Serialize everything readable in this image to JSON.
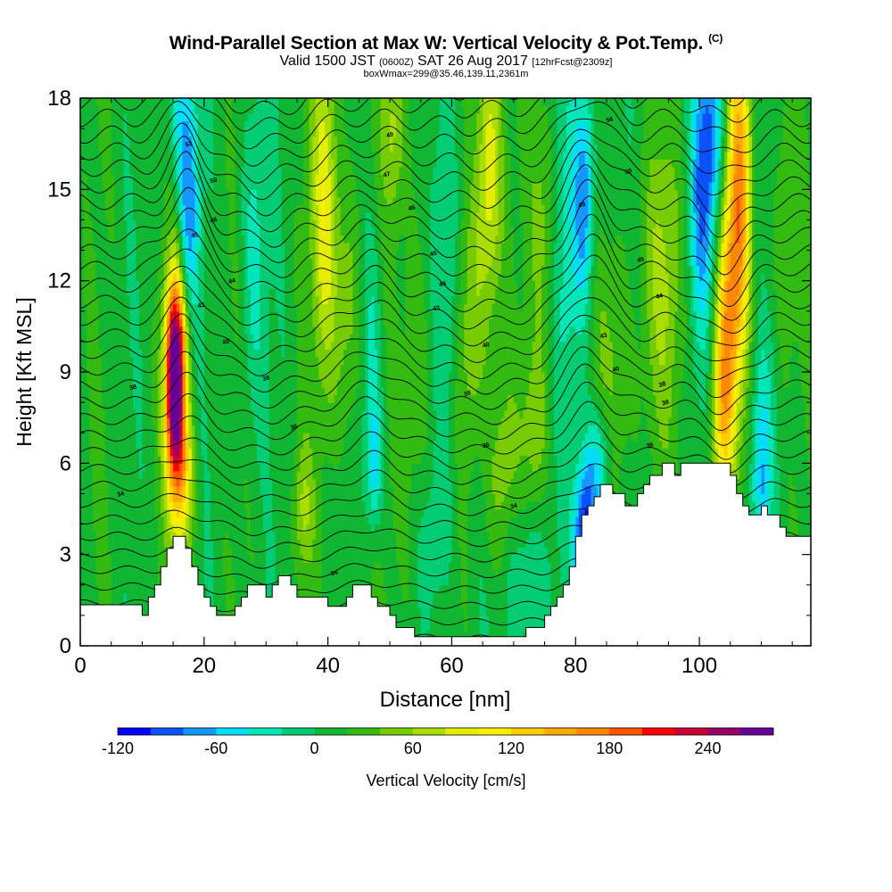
{
  "header": {
    "title": "Wind-Parallel Section at Max W: Vertical Velocity & Pot.Temp.",
    "copyright": "(C)",
    "valid_prefix": "Valid 1500 JST",
    "valid_zulu": "(0600Z)",
    "valid_date": "SAT 26 Aug 2017",
    "forecast": "[12hrFcst@2309z]",
    "boxinfo": "boxWmax=299@35.46,139.11,2361m"
  },
  "chart_data": {
    "type": "heatmap",
    "xlabel": "Distance [nm]",
    "ylabel": "Height [Kft MSL]",
    "xlim": [
      0,
      118
    ],
    "ylim": [
      0,
      18
    ],
    "x_ticks": [
      "0",
      "20",
      "40",
      "60",
      "80",
      "100"
    ],
    "x_tick_values": [
      0,
      20,
      40,
      60,
      80,
      100
    ],
    "y_ticks": [
      "0",
      "3",
      "6",
      "9",
      "12",
      "15",
      "18"
    ],
    "y_tick_values": [
      0,
      3,
      6,
      9,
      12,
      15,
      18
    ],
    "colorbar": {
      "label": "Vertical Velocity [cm/s]",
      "tick_labels": [
        "-120",
        "-60",
        "0",
        "60",
        "120",
        "180",
        "240"
      ],
      "tick_values": [
        -120,
        -60,
        0,
        60,
        120,
        180,
        240
      ],
      "range": [
        -120,
        280
      ],
      "step": 20,
      "colors": [
        "#0000ff",
        "#0a52ff",
        "#1498ff",
        "#00ddff",
        "#00e6b8",
        "#00cc73",
        "#11b633",
        "#33bb11",
        "#77cc00",
        "#aadd00",
        "#e6ee00",
        "#ffee00",
        "#ffcc00",
        "#ffaa00",
        "#ff8800",
        "#ff5500",
        "#ff0000",
        "#cc0033",
        "#990066",
        "#660099"
      ]
    },
    "terrain_profile": [
      [
        0,
        1.35
      ],
      [
        10,
        1.35
      ],
      [
        10,
        1.0
      ],
      [
        11,
        1.0
      ],
      [
        11,
        1.6
      ],
      [
        12,
        1.6
      ],
      [
        12,
        2.0
      ],
      [
        13,
        2.0
      ],
      [
        13,
        2.6
      ],
      [
        14,
        2.6
      ],
      [
        14,
        3.2
      ],
      [
        15,
        3.2
      ],
      [
        15,
        3.6
      ],
      [
        17,
        3.6
      ],
      [
        17,
        3.2
      ],
      [
        18,
        3.2
      ],
      [
        18,
        2.6
      ],
      [
        19,
        2.6
      ],
      [
        19,
        2.0
      ],
      [
        20,
        2.0
      ],
      [
        20,
        1.6
      ],
      [
        21,
        1.6
      ],
      [
        21,
        1.3
      ],
      [
        22,
        1.3
      ],
      [
        22,
        1.0
      ],
      [
        25,
        1.0
      ],
      [
        25,
        1.3
      ],
      [
        26,
        1.3
      ],
      [
        26,
        1.6
      ],
      [
        27,
        1.6
      ],
      [
        27,
        2.0
      ],
      [
        30,
        2.0
      ],
      [
        30,
        1.6
      ],
      [
        31,
        1.6
      ],
      [
        31,
        2.0
      ],
      [
        32,
        2.0
      ],
      [
        32,
        2.3
      ],
      [
        34,
        2.3
      ],
      [
        34,
        2.0
      ],
      [
        35,
        2.0
      ],
      [
        35,
        1.6
      ],
      [
        40,
        1.6
      ],
      [
        40,
        1.3
      ],
      [
        43,
        1.3
      ],
      [
        43,
        1.6
      ],
      [
        44,
        1.6
      ],
      [
        44,
        2.0
      ],
      [
        47,
        2.0
      ],
      [
        47,
        1.6
      ],
      [
        48,
        1.6
      ],
      [
        48,
        1.3
      ],
      [
        50,
        1.3
      ],
      [
        50,
        1.0
      ],
      [
        51,
        1.0
      ],
      [
        51,
        0.6
      ],
      [
        54,
        0.6
      ],
      [
        54,
        0.3
      ],
      [
        72,
        0.3
      ],
      [
        72,
        0.6
      ],
      [
        75,
        0.6
      ],
      [
        75,
        1.0
      ],
      [
        76,
        1.0
      ],
      [
        76,
        1.3
      ],
      [
        77,
        1.3
      ],
      [
        77,
        1.6
      ],
      [
        78,
        1.6
      ],
      [
        78,
        2.0
      ],
      [
        79,
        2.0
      ],
      [
        79,
        2.6
      ],
      [
        80,
        2.6
      ],
      [
        80,
        3.6
      ],
      [
        81,
        3.6
      ],
      [
        81,
        4.3
      ],
      [
        82,
        4.3
      ],
      [
        82,
        4.6
      ],
      [
        83,
        4.6
      ],
      [
        83,
        4.9
      ],
      [
        84,
        4.9
      ],
      [
        84,
        5.3
      ],
      [
        86,
        5.3
      ],
      [
        86,
        5.0
      ],
      [
        88,
        5.0
      ],
      [
        88,
        4.6
      ],
      [
        90,
        4.6
      ],
      [
        90,
        5.0
      ],
      [
        91,
        5.0
      ],
      [
        91,
        5.3
      ],
      [
        92,
        5.3
      ],
      [
        92,
        5.6
      ],
      [
        94,
        5.6
      ],
      [
        94,
        6.0
      ],
      [
        96,
        6.0
      ],
      [
        96,
        5.6
      ],
      [
        97,
        5.6
      ],
      [
        97,
        6.0
      ],
      [
        105,
        6.0
      ],
      [
        105,
        5.6
      ],
      [
        106,
        5.6
      ],
      [
        106,
        5.0
      ],
      [
        107,
        5.0
      ],
      [
        107,
        4.6
      ],
      [
        108,
        4.6
      ],
      [
        108,
        4.3
      ],
      [
        110,
        4.3
      ],
      [
        110,
        4.6
      ],
      [
        111,
        4.6
      ],
      [
        111,
        4.3
      ],
      [
        113,
        4.3
      ],
      [
        113,
        3.9
      ],
      [
        114,
        3.9
      ],
      [
        114,
        3.6
      ],
      [
        118,
        3.6
      ]
    ],
    "updrafts": [
      {
        "x": 15.2,
        "y": 8.5,
        "sx": 1.1,
        "sy": 2.3,
        "w": 260
      },
      {
        "x": 16.5,
        "y": 5.8,
        "sx": 1.3,
        "sy": 2.0,
        "w": 95
      },
      {
        "x": 16.0,
        "y": 10.5,
        "sx": 1.3,
        "sy": 1.5,
        "w": 75
      },
      {
        "x": 39.5,
        "y": 14.5,
        "sx": 1.5,
        "sy": 4.0,
        "w": 80
      },
      {
        "x": 43.0,
        "y": 11.0,
        "sx": 1.6,
        "sy": 3.0,
        "w": 45
      },
      {
        "x": 36.0,
        "y": 4.5,
        "sx": 1.2,
        "sy": 1.5,
        "w": 45
      },
      {
        "x": 50.5,
        "y": 17.0,
        "sx": 1.3,
        "sy": 2.0,
        "w": 50
      },
      {
        "x": 54.0,
        "y": 8.0,
        "sx": 2.0,
        "sy": 5.0,
        "w": 30
      },
      {
        "x": 66.0,
        "y": 15.5,
        "sx": 1.5,
        "sy": 3.5,
        "w": 90
      },
      {
        "x": 63.0,
        "y": 10.0,
        "sx": 1.5,
        "sy": 3.0,
        "w": 40
      },
      {
        "x": 68.0,
        "y": 5.5,
        "sx": 1.7,
        "sy": 2.5,
        "w": 45
      },
      {
        "x": 75.0,
        "y": 14.0,
        "sx": 1.5,
        "sy": 3.0,
        "w": 40
      },
      {
        "x": 73.5,
        "y": 7.0,
        "sx": 1.5,
        "sy": 2.0,
        "w": 40
      },
      {
        "x": 86.0,
        "y": 8.0,
        "sx": 2.0,
        "sy": 3.5,
        "w": 40
      },
      {
        "x": 94.0,
        "y": 12.0,
        "sx": 2.5,
        "sy": 3.5,
        "w": 45
      },
      {
        "x": 106.5,
        "y": 15.0,
        "sx": 1.3,
        "sy": 4.0,
        "w": 140
      },
      {
        "x": 104.5,
        "y": 10.5,
        "sx": 1.3,
        "sy": 3.0,
        "w": 115
      },
      {
        "x": 103.5,
        "y": 7.5,
        "sx": 1.2,
        "sy": 2.0,
        "w": 70
      },
      {
        "x": 114.0,
        "y": 14.0,
        "sx": 1.5,
        "sy": 3.0,
        "w": 30
      }
    ],
    "downdrafts": [
      {
        "x": 17.5,
        "y": 14.5,
        "sx": 1.2,
        "sy": 3.0,
        "w": -85
      },
      {
        "x": 15.5,
        "y": 17.5,
        "sx": 1.2,
        "sy": 1.5,
        "w": -40
      },
      {
        "x": 28.0,
        "y": 13.0,
        "sx": 1.5,
        "sy": 4.0,
        "w": -40
      },
      {
        "x": 47.5,
        "y": 6.0,
        "sx": 1.0,
        "sy": 1.5,
        "w": -60
      },
      {
        "x": 47.0,
        "y": 10.0,
        "sx": 1.2,
        "sy": 3.0,
        "w": -40
      },
      {
        "x": 59.0,
        "y": 12.5,
        "sx": 1.5,
        "sy": 5.0,
        "w": -45
      },
      {
        "x": 57.0,
        "y": 3.5,
        "sx": 2.0,
        "sy": 2.0,
        "w": -30
      },
      {
        "x": 71.5,
        "y": 2.2,
        "sx": 2.5,
        "sy": 2.0,
        "w": -40
      },
      {
        "x": 79.0,
        "y": 13.0,
        "sx": 2.0,
        "sy": 4.0,
        "w": -40
      },
      {
        "x": 81.5,
        "y": 15.0,
        "sx": 1.1,
        "sy": 2.5,
        "w": -80
      },
      {
        "x": 81.5,
        "y": 3.5,
        "sx": 1.3,
        "sy": 1.8,
        "w": -130
      },
      {
        "x": 84.0,
        "y": 6.0,
        "sx": 1.5,
        "sy": 1.5,
        "w": -70
      },
      {
        "x": 100.5,
        "y": 14.5,
        "sx": 1.5,
        "sy": 3.0,
        "w": -80
      },
      {
        "x": 102.0,
        "y": 17.0,
        "sx": 1.5,
        "sy": 2.0,
        "w": -60
      },
      {
        "x": 110.0,
        "y": 7.0,
        "sx": 1.2,
        "sy": 2.0,
        "w": -50
      },
      {
        "x": 110.0,
        "y": 5.0,
        "sx": 1.0,
        "sy": 1.0,
        "w": -40
      }
    ],
    "theta_contours": {
      "color": "#000000",
      "labels": [
        {
          "text": "38",
          "x": 8.5,
          "y": 8.5
        },
        {
          "text": "34",
          "x": 6.5,
          "y": 5.0
        },
        {
          "text": "40",
          "x": 23.5,
          "y": 10.0
        },
        {
          "text": "43",
          "x": 19.5,
          "y": 11.2
        },
        {
          "text": "44",
          "x": 24.5,
          "y": 12.0
        },
        {
          "text": "45",
          "x": 18.5,
          "y": 13.5
        },
        {
          "text": "46",
          "x": 21.5,
          "y": 14.0
        },
        {
          "text": "50",
          "x": 21.5,
          "y": 15.3
        },
        {
          "text": "53",
          "x": 17.5,
          "y": 16.5
        },
        {
          "text": "38",
          "x": 30.0,
          "y": 8.8
        },
        {
          "text": "36",
          "x": 34.5,
          "y": 7.2
        },
        {
          "text": "34",
          "x": 41.0,
          "y": 2.4
        },
        {
          "text": "49",
          "x": 50.0,
          "y": 16.8
        },
        {
          "text": "47",
          "x": 49.5,
          "y": 15.5
        },
        {
          "text": "46",
          "x": 53.5,
          "y": 14.4
        },
        {
          "text": "45",
          "x": 57.0,
          "y": 12.9
        },
        {
          "text": "44",
          "x": 58.5,
          "y": 11.9
        },
        {
          "text": "43",
          "x": 57.5,
          "y": 11.1
        },
        {
          "text": "40",
          "x": 65.5,
          "y": 9.9
        },
        {
          "text": "38",
          "x": 62.5,
          "y": 8.3
        },
        {
          "text": "36",
          "x": 65.5,
          "y": 6.6
        },
        {
          "text": "34",
          "x": 70.0,
          "y": 4.6
        },
        {
          "text": "56",
          "x": 85.5,
          "y": 17.3
        },
        {
          "text": "50",
          "x": 88.5,
          "y": 15.6
        },
        {
          "text": "49",
          "x": 81.0,
          "y": 14.5
        },
        {
          "text": "45",
          "x": 90.5,
          "y": 12.7
        },
        {
          "text": "44",
          "x": 93.5,
          "y": 11.5
        },
        {
          "text": "43",
          "x": 84.5,
          "y": 10.2
        },
        {
          "text": "40",
          "x": 86.5,
          "y": 9.1
        },
        {
          "text": "38",
          "x": 94.0,
          "y": 8.6
        },
        {
          "text": "38",
          "x": 94.5,
          "y": 8.0
        },
        {
          "text": "36",
          "x": 92.0,
          "y": 6.6
        }
      ]
    }
  }
}
